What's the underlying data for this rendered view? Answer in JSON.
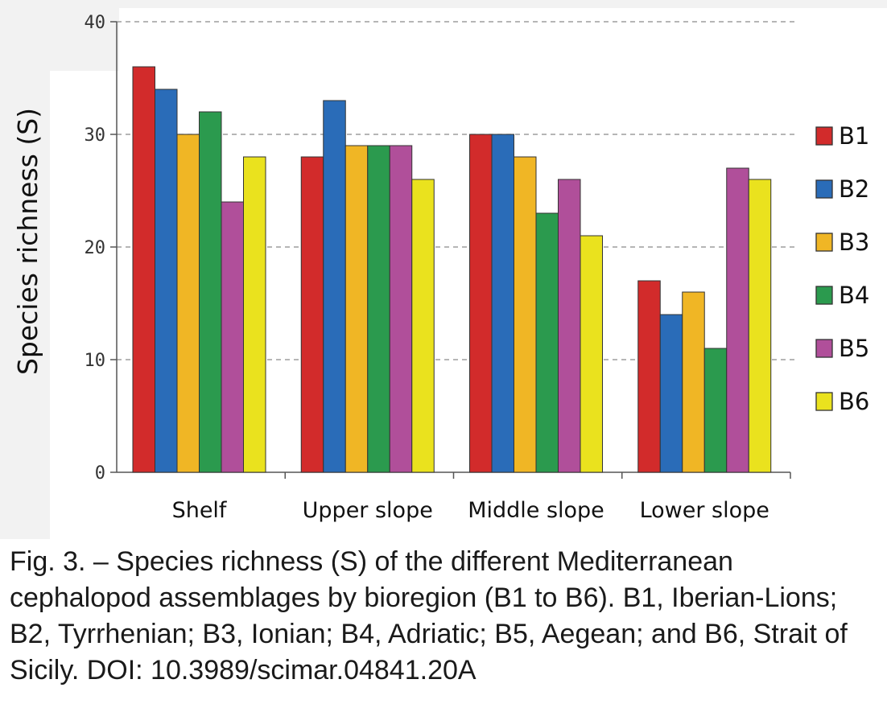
{
  "chart_data": {
    "type": "bar",
    "title": "",
    "xlabel": "",
    "ylabel": "Species richness (S)",
    "ylim": [
      0,
      40
    ],
    "yticks": [
      "0",
      "10",
      "20",
      "30",
      "40"
    ],
    "grid": true,
    "legend_position": "right",
    "categories": [
      "Shelf",
      "Upper slope",
      "Middle slope",
      "Lower slope"
    ],
    "series": [
      {
        "name": "B1",
        "color": "#d22b2b",
        "values": [
          36,
          28,
          30,
          17
        ]
      },
      {
        "name": "B2",
        "color": "#2a6cb8",
        "values": [
          34,
          33,
          30,
          14
        ]
      },
      {
        "name": "B3",
        "color": "#f0b625",
        "values": [
          30,
          29,
          28,
          16
        ]
      },
      {
        "name": "B4",
        "color": "#2b9a4e",
        "values": [
          32,
          29,
          23,
          11
        ]
      },
      {
        "name": "B5",
        "color": "#b04f9a",
        "values": [
          24,
          29,
          26,
          27
        ]
      },
      {
        "name": "B6",
        "color": "#eae21e",
        "values": [
          28,
          26,
          21,
          26
        ]
      }
    ]
  },
  "caption": "Fig. 3. – Species richness (S) of the different Mediterranean cephalopod assemblages by bioregion (B1 to B6). B1, Iberian-Lions; B2, Tyrrhenian; B3, Ionian; B4, Adriatic; B5, Aegean; and B6, Strait of Sicily. DOI: 10.3989/scimar.04841.20A"
}
